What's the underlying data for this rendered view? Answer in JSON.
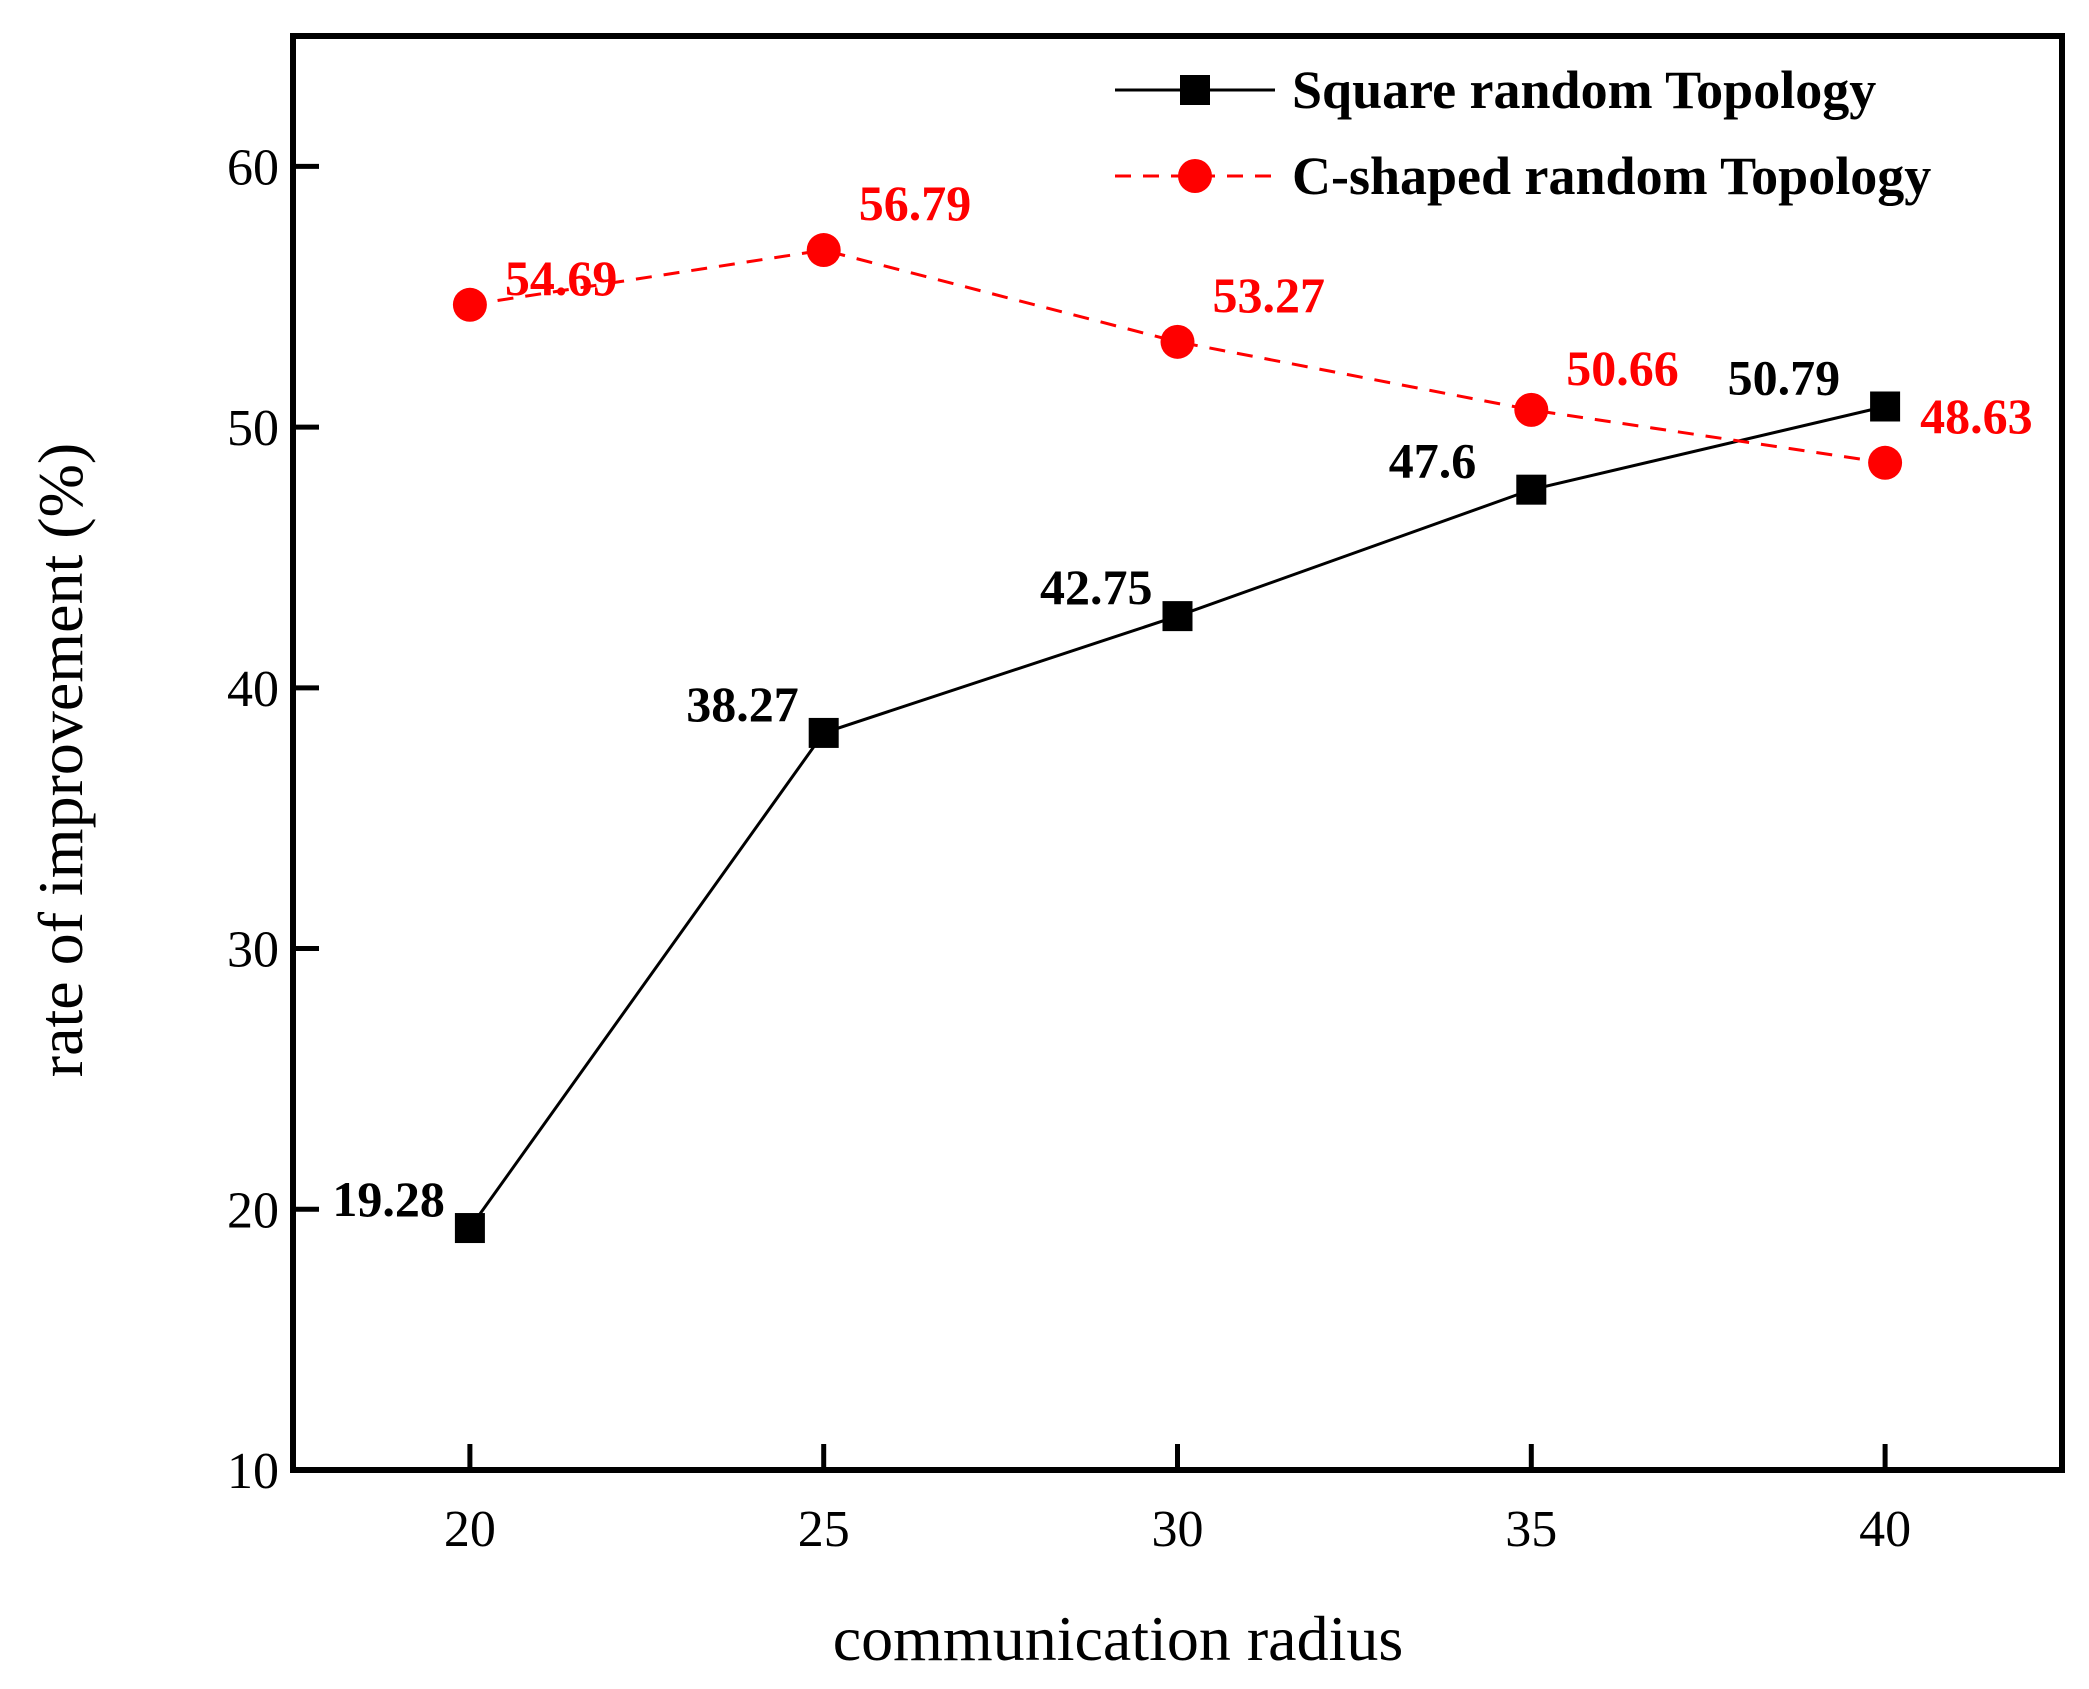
{
  "chart_data": {
    "type": "line",
    "title": "",
    "xlabel": "communication radius",
    "ylabel": "rate of improvement (%)",
    "x": [
      20,
      25,
      30,
      35,
      40
    ],
    "xticks": [
      "20",
      "25",
      "30",
      "35",
      "40"
    ],
    "yticks": [
      "10",
      "20",
      "30",
      "40",
      "50",
      "60"
    ],
    "xlim": [
      17.5,
      42.5
    ],
    "ylim": [
      10,
      65
    ],
    "grid": false,
    "legend_position": "top-right",
    "series": [
      {
        "name": "Square random Topology",
        "values": [
          19.28,
          38.27,
          42.75,
          47.6,
          50.79
        ],
        "labels": [
          "19.28",
          "38.27",
          "42.75",
          "47.6",
          "50.79"
        ],
        "color": "#000000",
        "marker": "square",
        "line_style": "solid"
      },
      {
        "name": "C-shaped random Topology",
        "values": [
          54.69,
          56.79,
          53.27,
          50.66,
          48.63
        ],
        "labels": [
          "54.69",
          "56.79",
          "53.27",
          "50.66",
          "48.63"
        ],
        "color": "#ff0000",
        "marker": "circle",
        "line_style": "dashed"
      }
    ]
  }
}
